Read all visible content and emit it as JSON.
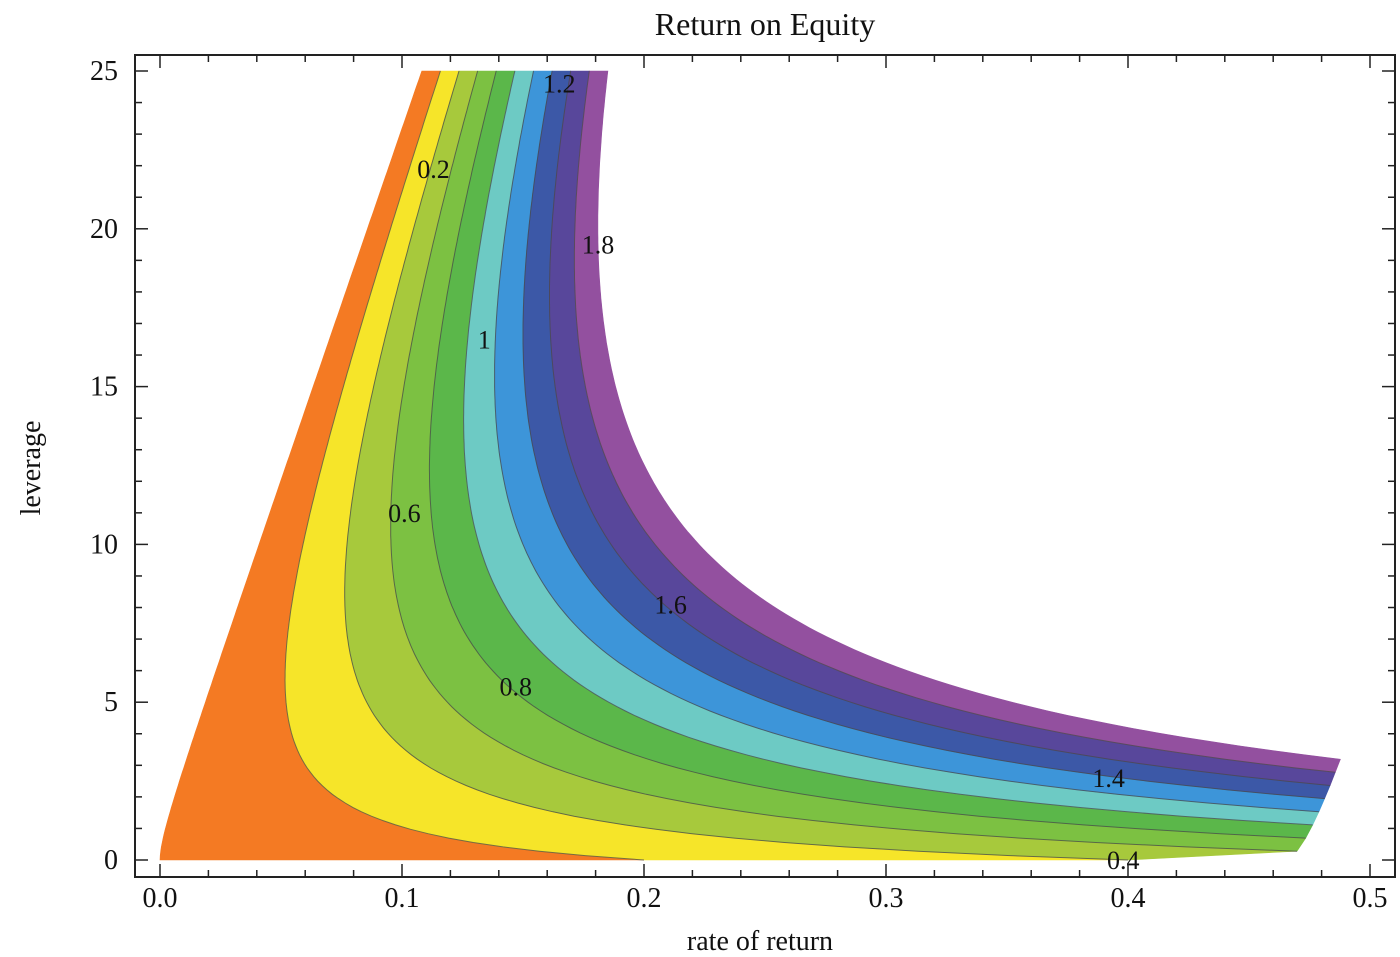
{
  "chart_data": {
    "type": "contour",
    "title": "Return on Equity",
    "xlabel": "rate of return",
    "ylabel": "leverage",
    "xlim": [
      0.0,
      0.5
    ],
    "ylim": [
      0,
      25
    ],
    "x_ticks": [
      "0.0",
      "0.1",
      "0.2",
      "0.3",
      "0.4",
      "0.5"
    ],
    "y_ticks": [
      "0",
      "5",
      "10",
      "15",
      "20",
      "25"
    ],
    "levels": [
      0.0,
      0.2,
      0.4,
      0.6,
      0.8,
      1.0,
      1.2,
      1.4,
      1.6,
      1.8,
      2.0
    ],
    "band_colors": [
      "#f47a23",
      "#f6e529",
      "#a7c93c",
      "#7cc142",
      "#5bb74a",
      "#6dcac4",
      "#3d95d9",
      "#3c58a7",
      "#58479b",
      "#93509f"
    ],
    "contour_labels": [
      {
        "text": "1.2",
        "x": 0.165,
        "y": 24.6
      },
      {
        "text": "0.2",
        "x": 0.113,
        "y": 21.9
      },
      {
        "text": "1.8",
        "x": 0.181,
        "y": 19.5
      },
      {
        "text": "1",
        "x": 0.134,
        "y": 16.5
      },
      {
        "text": "0.6",
        "x": 0.101,
        "y": 11.0
      },
      {
        "text": "1.6",
        "x": 0.211,
        "y": 8.1
      },
      {
        "text": "0.8",
        "x": 0.147,
        "y": 5.5
      },
      {
        "text": "1.4",
        "x": 0.392,
        "y": 2.6
      },
      {
        "text": "0.4",
        "x": 0.398,
        "y": 0.0
      }
    ]
  }
}
